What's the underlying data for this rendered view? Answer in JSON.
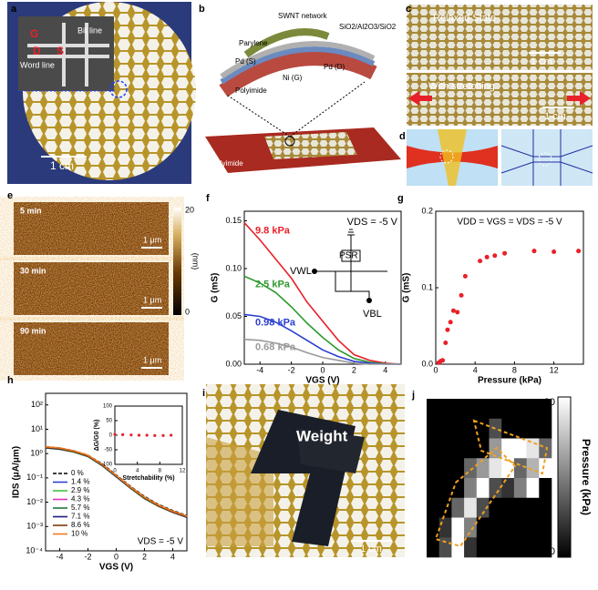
{
  "panels": {
    "a": {
      "label": "a",
      "texts": [
        "G",
        "D",
        "S",
        "Bit line",
        "Word line",
        "1 cm"
      ]
    },
    "b": {
      "label": "b",
      "texts": [
        "SWNT network",
        "SiO2/Al2O3/SiO2",
        "Parylene",
        "Pd (S)",
        "Pd (D)",
        "Ni (G)",
        "Polyimide",
        "Polyimide"
      ]
    },
    "c": {
      "label": "c",
      "texts": [
        "Relaxed  State",
        "1 cm",
        "With stretching",
        "1 cm"
      ]
    },
    "d": {
      "label": "d"
    },
    "e": {
      "label": "e",
      "texts": [
        "5 min",
        "1 μm",
        "30 min",
        "1 μm",
        "90 min",
        "1 μm"
      ],
      "colorbar_ticks": [
        20,
        0
      ],
      "colorbar_label": "(nm)"
    },
    "i": {
      "label": "i",
      "texts": [
        "Weight",
        "1 cm"
      ]
    }
  },
  "chart_data": [
    {
      "type": "line",
      "label": "f",
      "xlabel": "VGS (V)",
      "ylabel": "G (mS)",
      "annotation": "VDS = -5 V",
      "circuit_labels": [
        "VWL",
        "PSR",
        "VBL"
      ],
      "x": [
        -5,
        -4,
        -3,
        -2,
        -1,
        0,
        1,
        2,
        3,
        4,
        5
      ],
      "series": [
        {
          "name": "9.8 kPa",
          "color": "#e8202a",
          "values": [
            0.148,
            0.13,
            0.11,
            0.09,
            0.065,
            0.045,
            0.025,
            0.01,
            0.004,
            0.001,
            0
          ]
        },
        {
          "name": "2.5 kPa",
          "color": "#2e9a2e",
          "values": [
            0.092,
            0.085,
            0.075,
            0.06,
            0.043,
            0.028,
            0.015,
            0.006,
            0.002,
            0.0005,
            0
          ]
        },
        {
          "name": "0.98 kPa",
          "color": "#2b3fd0",
          "values": [
            0.052,
            0.05,
            0.044,
            0.035,
            0.025,
            0.015,
            0.008,
            0.003,
            0.001,
            0,
            0
          ]
        },
        {
          "name": "0.68 kPa",
          "color": "#999999",
          "values": [
            0.026,
            0.025,
            0.022,
            0.018,
            0.012,
            0.007,
            0.004,
            0.001,
            0,
            0,
            0
          ]
        }
      ],
      "xlim": [
        -5,
        5
      ],
      "xticks": [
        -4,
        -2,
        0,
        2,
        4
      ],
      "ylim": [
        0,
        0.16
      ],
      "yticks": [
        {
          "value": 0,
          "label": "0.00"
        },
        0.05,
        {
          "value": 0.1,
          "label": "0.10"
        },
        0.15
      ]
    },
    {
      "type": "scatter",
      "label": "g",
      "xlabel": "Pressure (kPa)",
      "ylabel": "G (mS)",
      "annotation": "VDD = VGS = VDS = -5 V",
      "color": "#e8202a",
      "x": [
        0.3,
        0.5,
        0.7,
        1,
        1.2,
        1.5,
        1.8,
        2.2,
        2.6,
        3,
        4.5,
        5.2,
        6,
        7,
        10,
        12,
        14.5
      ],
      "values": [
        0.002,
        0.004,
        0.005,
        0.028,
        0.045,
        0.055,
        0.07,
        0.068,
        0.09,
        0.115,
        0.135,
        0.14,
        0.142,
        0.145,
        0.148,
        0.147,
        0.148
      ],
      "xlim": [
        0,
        15
      ],
      "xticks": [
        0,
        4,
        8,
        12
      ],
      "ylim": [
        0,
        0.2
      ],
      "yticks": [
        {
          "value": 0,
          "label": "0.0"
        },
        0.1,
        0.2
      ]
    },
    {
      "type": "line",
      "label": "h",
      "xlabel": "VGS (V)",
      "ylabel": "IDS (μA/μm)",
      "annotation": "VDS = -5 V",
      "log_y": true,
      "x": [
        -5,
        -4,
        -3,
        -2,
        -1,
        0,
        1,
        2,
        3,
        4,
        5
      ],
      "series": [
        {
          "name": "0 %",
          "color": "#000000",
          "dashed": true,
          "values": [
            1.9,
            1.7,
            1.3,
            0.85,
            0.38,
            0.13,
            0.045,
            0.017,
            0.008,
            0.0045,
            0.0028
          ]
        },
        {
          "name": "1.4 %",
          "color": "#2b3fd0",
          "values": [
            1.8,
            1.6,
            1.25,
            0.8,
            0.35,
            0.12,
            0.042,
            0.016,
            0.0075,
            0.0042,
            0.0026
          ]
        },
        {
          "name": "2.9 %",
          "color": "#3fc23f",
          "values": [
            1.8,
            1.6,
            1.2,
            0.8,
            0.34,
            0.12,
            0.04,
            0.015,
            0.0072,
            0.004,
            0.0025
          ]
        },
        {
          "name": "4.3 %",
          "color": "#e030c0",
          "values": [
            1.7,
            1.55,
            1.2,
            0.78,
            0.33,
            0.115,
            0.04,
            0.015,
            0.007,
            0.004,
            0.0025
          ]
        },
        {
          "name": "5.7 %",
          "color": "#1e7a3a",
          "values": [
            1.7,
            1.5,
            1.15,
            0.75,
            0.32,
            0.11,
            0.038,
            0.014,
            0.0068,
            0.0038,
            0.0024
          ]
        },
        {
          "name": "7.1 %",
          "color": "#1a1a80",
          "values": [
            1.75,
            1.55,
            1.2,
            0.78,
            0.33,
            0.115,
            0.039,
            0.015,
            0.007,
            0.0039,
            0.0024
          ]
        },
        {
          "name": "8.6 %",
          "color": "#7a3a10",
          "values": [
            1.8,
            1.6,
            1.2,
            0.8,
            0.34,
            0.12,
            0.04,
            0.015,
            0.007,
            0.004,
            0.0025
          ]
        },
        {
          "name": "10 %",
          "color": "#f07a20",
          "values": [
            1.9,
            1.7,
            1.3,
            0.85,
            0.36,
            0.125,
            0.043,
            0.016,
            0.0076,
            0.0043,
            0.0027
          ]
        }
      ],
      "xlim": [
        -5,
        5
      ],
      "xticks": [
        -4,
        -2,
        0,
        2,
        4
      ],
      "ylim": [
        0.0001,
        300
      ],
      "yticks": [
        {
          "value": 0.0001,
          "label": "10⁻⁴"
        },
        {
          "value": 0.001,
          "label": "10⁻³"
        },
        {
          "value": 0.01,
          "label": "10⁻²"
        },
        {
          "value": 0.1,
          "label": "10⁻¹"
        },
        {
          "value": 1,
          "label": "10⁰"
        },
        {
          "value": 10,
          "label": "10¹"
        },
        {
          "value": 100,
          "label": "10²"
        }
      ]
    },
    {
      "type": "scatter",
      "xlabel": "Stretchability (%)",
      "ylabel": "ΔG/G0 (%)",
      "color": "#e8202a",
      "x": [
        0,
        1.4,
        2.9,
        4.3,
        5.7,
        7.1,
        8.6,
        10
      ],
      "values": [
        3,
        2,
        1,
        0,
        0,
        -1,
        -1,
        0
      ],
      "xlim": [
        0,
        12
      ],
      "xticks": [
        0,
        4,
        8,
        12
      ],
      "ylim": [
        -100,
        100
      ],
      "yticks": [
        -100,
        -50,
        0,
        50,
        100
      ]
    },
    {
      "type": "heatmap",
      "label": "j",
      "zlabel": "Pressure (kPa)",
      "zlim": [
        0,
        20
      ],
      "zticks": [
        20,
        0
      ],
      "values": [
        [
          0,
          0,
          0,
          0,
          0,
          0,
          0,
          0,
          0,
          0
        ],
        [
          0,
          0,
          0,
          0,
          0,
          6,
          0,
          0,
          0,
          0
        ],
        [
          0,
          0,
          0,
          0,
          0,
          12,
          20,
          20,
          18,
          8
        ],
        [
          0,
          0,
          0,
          8,
          12,
          18,
          20,
          8,
          14,
          20
        ],
        [
          0,
          0,
          0,
          10,
          20,
          6,
          4,
          10,
          20,
          0
        ],
        [
          0,
          0,
          8,
          18,
          6,
          0,
          0,
          0,
          0,
          0
        ],
        [
          0,
          4,
          20,
          10,
          0,
          0,
          0,
          0,
          0,
          0
        ],
        [
          0,
          6,
          20,
          4,
          0,
          0,
          0,
          0,
          0,
          0
        ]
      ]
    }
  ]
}
